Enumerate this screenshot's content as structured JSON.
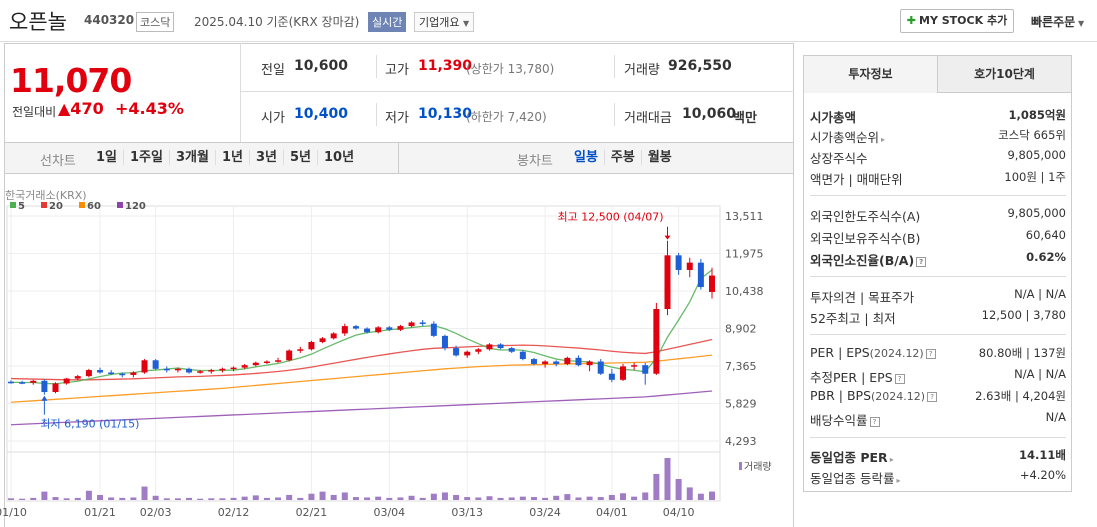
{
  "header": {
    "name": "오픈놀",
    "code": "440320",
    "market": "코스닥",
    "date": "2025.04.10  기준(KRX 장마감)",
    "realtime": "실시간",
    "company_overview": "기업개요",
    "my_stock": "MY STOCK 추가",
    "quick_order": "빠른주문"
  },
  "price": {
    "current": "11,070",
    "change_label": "전일대비",
    "change": "▲470",
    "rate": "+4.43%"
  },
  "stats": {
    "prev_label": "전일",
    "prev": "10,600",
    "high_label": "고가",
    "high": "11,390",
    "upper_limit": "(상한가 13,780)",
    "volume_label": "거래량",
    "volume": "926,550",
    "open_label": "시가",
    "open": "10,400",
    "low_label": "저가",
    "low": "10,130",
    "lower_limit": "(하한가 7,420)",
    "amount_label": "거래대금",
    "amount": "10,060",
    "amount_unit": "백만"
  },
  "chart_tabs": {
    "line_label": "선차트",
    "line": [
      "1일",
      "1주일",
      "3개월",
      "1년",
      "3년",
      "5년",
      "10년"
    ],
    "candle_label": "봉차트",
    "candle": [
      "일봉",
      "주봉",
      "월봉"
    ]
  },
  "chart_data": {
    "type": "candlestick",
    "source_label": "한국거래소(KRX)",
    "legend": [
      {
        "name": "5",
        "color": "#4caf50"
      },
      {
        "name": "20",
        "color": "#e53935"
      },
      {
        "name": "60",
        "color": "#fb8c00"
      },
      {
        "name": "120",
        "color": "#8e44ad"
      }
    ],
    "yticks": [
      13511,
      11975,
      10438,
      8902,
      7365,
      5829,
      4293
    ],
    "ytick_labels": [
      "13,511",
      "11,975",
      "10,438",
      "8,902",
      "7,365",
      "5,829",
      "4,293"
    ],
    "ylim": [
      4293,
      13511
    ],
    "xticks": [
      "01/10",
      "01/21",
      "02/03",
      "02/12",
      "02/21",
      "03/04",
      "03/13",
      "03/24",
      "04/01",
      "04/10"
    ],
    "xtick_index": [
      0,
      8,
      13,
      20,
      27,
      34,
      41,
      48,
      54,
      60
    ],
    "high_annotation": "최고 12,500 (04/07)",
    "low_annotation": "최저 6,190 (01/15)",
    "volume_label": "거래량",
    "candles": [
      [
        6720,
        6780,
        6640,
        6700
      ],
      [
        6700,
        6760,
        6620,
        6680
      ],
      [
        6680,
        6800,
        6600,
        6760
      ],
      [
        6760,
        6820,
        6190,
        6300
      ],
      [
        6300,
        6700,
        6250,
        6650
      ],
      [
        6650,
        6880,
        6600,
        6850
      ],
      [
        6850,
        7000,
        6800,
        6950
      ],
      [
        6950,
        7250,
        6900,
        7200
      ],
      [
        7200,
        7300,
        7050,
        7100
      ],
      [
        7100,
        7200,
        7000,
        7050
      ],
      [
        7050,
        7100,
        6900,
        7000
      ],
      [
        7000,
        7150,
        6900,
        7100
      ],
      [
        7100,
        7650,
        7050,
        7600
      ],
      [
        7600,
        7650,
        7200,
        7250
      ],
      [
        7250,
        7350,
        7100,
        7200
      ],
      [
        7200,
        7300,
        7100,
        7250
      ],
      [
        7250,
        7300,
        7050,
        7100
      ],
      [
        7100,
        7200,
        7050,
        7150
      ],
      [
        7150,
        7250,
        7050,
        7200
      ],
      [
        7200,
        7300,
        7100,
        7250
      ],
      [
        7250,
        7350,
        7150,
        7300
      ],
      [
        7300,
        7450,
        7250,
        7400
      ],
      [
        7400,
        7550,
        7350,
        7500
      ],
      [
        7500,
        7600,
        7450,
        7550
      ],
      [
        7550,
        7700,
        7500,
        7600
      ],
      [
        7600,
        8050,
        7550,
        8000
      ],
      [
        8000,
        8150,
        7900,
        8050
      ],
      [
        8050,
        8400,
        8000,
        8350
      ],
      [
        8350,
        8550,
        8300,
        8500
      ],
      [
        8500,
        8750,
        8450,
        8700
      ],
      [
        8700,
        9100,
        8600,
        9000
      ],
      [
        9000,
        9050,
        8850,
        8900
      ],
      [
        8900,
        8950,
        8700,
        8750
      ],
      [
        8750,
        9000,
        8700,
        8950
      ],
      [
        8950,
        9000,
        8800,
        8850
      ],
      [
        8850,
        9050,
        8800,
        9000
      ],
      [
        9000,
        9200,
        8950,
        9150
      ],
      [
        9150,
        9250,
        9000,
        9100
      ],
      [
        9100,
        9200,
        8550,
        8600
      ],
      [
        8600,
        8650,
        8000,
        8100
      ],
      [
        8100,
        8200,
        7750,
        7800
      ],
      [
        7800,
        8000,
        7700,
        7950
      ],
      [
        7950,
        8100,
        7850,
        8050
      ],
      [
        8050,
        8300,
        8000,
        8250
      ],
      [
        8250,
        8300,
        8050,
        8100
      ],
      [
        8100,
        8150,
        7900,
        7950
      ],
      [
        7950,
        8000,
        7600,
        7650
      ],
      [
        7650,
        7700,
        7400,
        7450
      ],
      [
        7450,
        7600,
        7300,
        7550
      ],
      [
        7550,
        7600,
        7350,
        7450
      ],
      [
        7450,
        7750,
        7400,
        7700
      ],
      [
        7700,
        7800,
        7350,
        7400
      ],
      [
        7400,
        7600,
        7150,
        7550
      ],
      [
        7550,
        7650,
        7000,
        7050
      ],
      [
        7050,
        7250,
        6700,
        6800
      ],
      [
        6800,
        7450,
        6750,
        7350
      ],
      [
        7350,
        7500,
        7200,
        7400
      ],
      [
        7400,
        7500,
        6600,
        7050
      ],
      [
        7050,
        9950,
        7000,
        9700
      ],
      [
        9700,
        12500,
        9450,
        11900
      ],
      [
        11900,
        12000,
        11100,
        11300
      ],
      [
        11300,
        11800,
        11000,
        11600
      ],
      [
        11600,
        11750,
        10500,
        10600
      ],
      [
        10400,
        11390,
        10130,
        11070
      ]
    ],
    "ma5": [
      6700,
      6690,
      6690,
      6650,
      6640,
      6690,
      6740,
      6840,
      6930,
      7020,
      7080,
      7090,
      7170,
      7200,
      7240,
      7280,
      7220,
      7180,
      7180,
      7190,
      7200,
      7250,
      7330,
      7400,
      7470,
      7580,
      7700,
      7850,
      8060,
      8260,
      8450,
      8630,
      8730,
      8790,
      8850,
      8890,
      8940,
      8990,
      9020,
      8890,
      8700,
      8480,
      8280,
      8090,
      8020,
      8030,
      8010,
      7920,
      7780,
      7650,
      7580,
      7560,
      7530,
      7440,
      7320,
      7230,
      7190,
      7130,
      7680,
      8550,
      9250,
      9990,
      10950,
      11300
    ],
    "ma20": [
      6850,
      6840,
      6830,
      6820,
      6810,
      6800,
      6800,
      6800,
      6810,
      6820,
      6830,
      6840,
      6860,
      6880,
      6900,
      6920,
      6930,
      6940,
      6960,
      6980,
      7000,
      7030,
      7060,
      7100,
      7140,
      7190,
      7250,
      7320,
      7400,
      7480,
      7560,
      7640,
      7720,
      7790,
      7860,
      7930,
      7990,
      8050,
      8090,
      8110,
      8130,
      8150,
      8170,
      8190,
      8200,
      8210,
      8220,
      8210,
      8190,
      8160,
      8130,
      8100,
      8060,
      8020,
      7970,
      7930,
      7900,
      7880,
      7950,
      8050,
      8150,
      8250,
      8350,
      8450
    ],
    "ma60": [
      5880,
      5910,
      5940,
      5970,
      6000,
      6030,
      6060,
      6090,
      6120,
      6150,
      6180,
      6210,
      6240,
      6270,
      6300,
      6330,
      6360,
      6390,
      6420,
      6450,
      6490,
      6530,
      6570,
      6610,
      6650,
      6690,
      6730,
      6770,
      6810,
      6850,
      6890,
      6930,
      6970,
      7010,
      7050,
      7090,
      7130,
      7170,
      7210,
      7250,
      7280,
      7310,
      7340,
      7360,
      7380,
      7400,
      7410,
      7420,
      7430,
      7440,
      7450,
      7460,
      7470,
      7480,
      7490,
      7500,
      7510,
      7520,
      7560,
      7610,
      7660,
      7710,
      7760,
      7810
    ],
    "ma120": [
      4960,
      4980,
      5000,
      5020,
      5040,
      5060,
      5080,
      5100,
      5120,
      5140,
      5160,
      5180,
      5200,
      5220,
      5240,
      5260,
      5280,
      5300,
      5320,
      5340,
      5360,
      5380,
      5400,
      5420,
      5440,
      5460,
      5480,
      5500,
      5520,
      5540,
      5560,
      5580,
      5600,
      5620,
      5640,
      5660,
      5680,
      5700,
      5720,
      5740,
      5760,
      5780,
      5800,
      5820,
      5840,
      5860,
      5880,
      5900,
      5920,
      5940,
      5960,
      5980,
      6000,
      6020,
      6040,
      6060,
      6080,
      6100,
      6140,
      6180,
      6220,
      6260,
      6300,
      6340
    ],
    "volume": [
      0.04,
      0.03,
      0.05,
      0.2,
      0.07,
      0.04,
      0.05,
      0.22,
      0.12,
      0.06,
      0.05,
      0.06,
      0.32,
      0.1,
      0.04,
      0.04,
      0.05,
      0.03,
      0.04,
      0.04,
      0.05,
      0.08,
      0.11,
      0.05,
      0.06,
      0.12,
      0.05,
      0.15,
      0.2,
      0.12,
      0.18,
      0.07,
      0.06,
      0.08,
      0.05,
      0.06,
      0.1,
      0.05,
      0.15,
      0.18,
      0.12,
      0.07,
      0.06,
      0.09,
      0.05,
      0.06,
      0.08,
      0.07,
      0.05,
      0.1,
      0.14,
      0.06,
      0.08,
      0.07,
      0.12,
      0.16,
      0.08,
      0.18,
      0.62,
      1.0,
      0.5,
      0.3,
      0.15,
      0.2
    ]
  },
  "tabs_right": [
    "투자정보",
    "호가10단계"
  ],
  "invest": {
    "market_cap_label": "시가총액",
    "market_cap": "1,085억원",
    "market_cap_rank_label": "시가총액순위",
    "market_cap_rank": "코스닥 665위",
    "shares_label": "상장주식수",
    "shares": "9,805,000",
    "par_label": "액면가 | 매매단위",
    "par": "100원 | 1주",
    "foreign_limit_label": "외국인한도주식수(A)",
    "foreign_limit": "9,805,000",
    "foreign_hold_label": "외국인보유주식수(B)",
    "foreign_hold": "60,640",
    "foreign_ratio_label": "외국인소진율(B/A)",
    "foreign_ratio": "0.62%",
    "opinion_label": "투자의견 | 목표주가",
    "opinion": "N/A | N/A",
    "w52_label": "52주최고 | 최저",
    "w52": "12,500 | 3,780",
    "per_label": "PER | EPS",
    "per_date": "(2024.12)",
    "per": "80.80배 | 137원",
    "est_per_label": "추정PER | EPS",
    "est_per": "N/A | N/A",
    "pbr_label": "PBR | BPS",
    "pbr_date": "(2024.12)",
    "pbr": "2.63배 | 4,204원",
    "div_label": "배당수익률",
    "div": "N/A",
    "sector_per_label": "동일업종 PER",
    "sector_per": "14.11배",
    "sector_rate_label": "동일업종 등락률",
    "sector_rate": "+4.20%"
  },
  "colors": {
    "up": "#e0000e",
    "down": "#1e5fd6",
    "volume": "#a07cc5"
  }
}
